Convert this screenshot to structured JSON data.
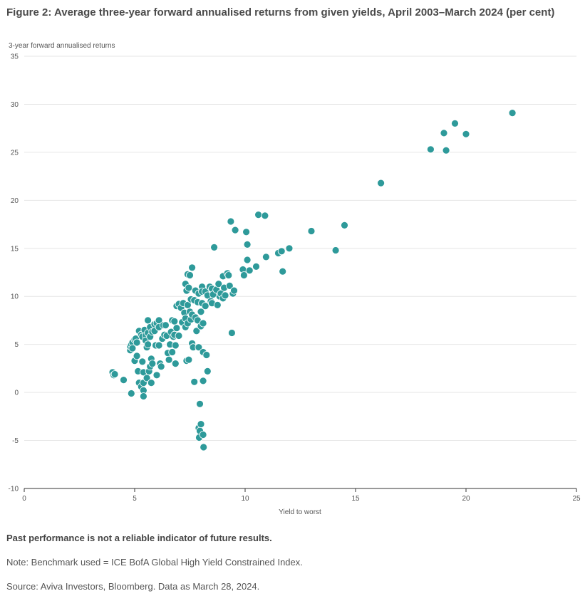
{
  "title": "Figure 2: Average three-year forward annualised returns from given yields, April 2003–March 2024 (per cent)",
  "footnotes": {
    "disclaimer": "Past performance is not a reliable indicator of future results.",
    "note": "Note: Benchmark used = ICE BofA Global High Yield Constrained Index.",
    "source": "Source: Aviva Investors, Bloomberg. Data as March 28, 2024."
  },
  "colors": {
    "point": "#2e9a9a",
    "point_stroke": "#ffffff",
    "grid": "#e6e6e6",
    "axis": "#333333"
  },
  "chart_data": {
    "type": "scatter",
    "title": "Figure 2: Average three-year forward annualised returns from given yields, April 2003–March 2024 (per cent)",
    "xlabel": "Yield to worst",
    "ylabel": "3-year forward annualised returns",
    "xlim": [
      0,
      25
    ],
    "ylim": [
      -10,
      35
    ],
    "xticks": [
      0,
      5,
      10,
      15,
      20,
      25
    ],
    "yticks": [
      -10,
      -5,
      0,
      5,
      10,
      15,
      20,
      25,
      30,
      35
    ],
    "grid": "horizontal",
    "legend": "none",
    "points": [
      [
        4.0,
        2.1
      ],
      [
        4.05,
        1.8
      ],
      [
        4.1,
        1.9
      ],
      [
        4.5,
        1.3
      ],
      [
        4.8,
        4.4
      ],
      [
        4.8,
        4.8
      ],
      [
        4.85,
        5.0
      ],
      [
        4.9,
        5.2
      ],
      [
        4.9,
        4.6
      ],
      [
        4.85,
        -0.1
      ],
      [
        5.0,
        3.3
      ],
      [
        5.0,
        5.5
      ],
      [
        5.05,
        5.6
      ],
      [
        5.1,
        5.2
      ],
      [
        5.1,
        3.8
      ],
      [
        5.15,
        2.2
      ],
      [
        5.2,
        6.4
      ],
      [
        5.2,
        1.0
      ],
      [
        5.3,
        6.0
      ],
      [
        5.3,
        0.6
      ],
      [
        5.35,
        5.8
      ],
      [
        5.35,
        3.2
      ],
      [
        5.4,
        2.1
      ],
      [
        5.4,
        1.0
      ],
      [
        5.4,
        0.2
      ],
      [
        5.4,
        -0.4
      ],
      [
        5.45,
        6.5
      ],
      [
        5.5,
        5.9
      ],
      [
        5.5,
        5.4
      ],
      [
        5.55,
        4.7
      ],
      [
        5.55,
        1.5
      ],
      [
        5.6,
        7.5
      ],
      [
        5.6,
        6.2
      ],
      [
        5.6,
        5.0
      ],
      [
        5.65,
        2.2
      ],
      [
        5.7,
        6.8
      ],
      [
        5.7,
        5.8
      ],
      [
        5.7,
        2.7
      ],
      [
        5.75,
        3.5
      ],
      [
        5.75,
        1.0
      ],
      [
        5.8,
        6.3
      ],
      [
        5.8,
        3.0
      ],
      [
        5.9,
        7.1
      ],
      [
        5.9,
        6.4
      ],
      [
        5.95,
        4.9
      ],
      [
        6.0,
        7.2
      ],
      [
        6.0,
        1.8
      ],
      [
        6.1,
        7.5
      ],
      [
        6.1,
        6.8
      ],
      [
        6.1,
        4.9
      ],
      [
        6.15,
        3.0
      ],
      [
        6.2,
        2.7
      ],
      [
        6.25,
        5.6
      ],
      [
        6.3,
        7.0
      ],
      [
        6.35,
        6.0
      ],
      [
        6.4,
        7.0
      ],
      [
        6.45,
        5.9
      ],
      [
        6.5,
        4.1
      ],
      [
        6.55,
        3.4
      ],
      [
        6.6,
        5.0
      ],
      [
        6.65,
        6.3
      ],
      [
        6.7,
        7.5
      ],
      [
        6.7,
        4.2
      ],
      [
        6.75,
        5.8
      ],
      [
        6.8,
        7.4
      ],
      [
        6.8,
        6.0
      ],
      [
        6.85,
        4.9
      ],
      [
        6.85,
        3.0
      ],
      [
        6.9,
        9.0
      ],
      [
        6.9,
        6.7
      ],
      [
        7.0,
        9.2
      ],
      [
        7.0,
        5.9
      ],
      [
        7.1,
        8.8
      ],
      [
        7.15,
        7.3
      ],
      [
        7.2,
        9.3
      ],
      [
        7.25,
        8.3
      ],
      [
        7.3,
        11.3
      ],
      [
        7.3,
        7.7
      ],
      [
        7.3,
        6.8
      ],
      [
        7.35,
        10.6
      ],
      [
        7.35,
        3.3
      ],
      [
        7.4,
        12.3
      ],
      [
        7.4,
        9.1
      ],
      [
        7.4,
        7.2
      ],
      [
        7.45,
        10.9
      ],
      [
        7.45,
        3.4
      ],
      [
        7.5,
        12.2
      ],
      [
        7.5,
        8.4
      ],
      [
        7.55,
        9.7
      ],
      [
        7.55,
        7.6
      ],
      [
        7.6,
        13.0
      ],
      [
        7.6,
        8.1
      ],
      [
        7.6,
        5.1
      ],
      [
        7.65,
        4.7
      ],
      [
        7.7,
        9.6
      ],
      [
        7.7,
        1.1
      ],
      [
        7.75,
        10.6
      ],
      [
        7.75,
        7.8
      ],
      [
        7.8,
        6.4
      ],
      [
        7.85,
        9.4
      ],
      [
        7.85,
        7.5
      ],
      [
        7.9,
        10.3
      ],
      [
        7.9,
        4.7
      ],
      [
        7.9,
        -3.7
      ],
      [
        7.92,
        -4.7
      ],
      [
        7.95,
        -4.0
      ],
      [
        7.95,
        -1.2
      ],
      [
        8.0,
        8.4
      ],
      [
        8.0,
        6.9
      ],
      [
        8.0,
        -3.3
      ],
      [
        8.05,
        11.0
      ],
      [
        8.05,
        10.5
      ],
      [
        8.05,
        9.3
      ],
      [
        8.1,
        7.2
      ],
      [
        8.1,
        4.2
      ],
      [
        8.1,
        1.2
      ],
      [
        8.1,
        -4.4
      ],
      [
        8.12,
        -5.7
      ],
      [
        8.2,
        10.5
      ],
      [
        8.2,
        9.0
      ],
      [
        8.25,
        3.9
      ],
      [
        8.3,
        10.1
      ],
      [
        8.3,
        2.2
      ],
      [
        8.4,
        11.0
      ],
      [
        8.45,
        9.5
      ],
      [
        8.5,
        10.8
      ],
      [
        8.5,
        9.3
      ],
      [
        8.55,
        10.2
      ],
      [
        8.6,
        15.1
      ],
      [
        8.7,
        10.7
      ],
      [
        8.75,
        9.1
      ],
      [
        8.8,
        11.3
      ],
      [
        8.85,
        10.0
      ],
      [
        8.9,
        10.3
      ],
      [
        9.0,
        12.1
      ],
      [
        9.0,
        9.8
      ],
      [
        9.05,
        10.9
      ],
      [
        9.1,
        10.1
      ],
      [
        9.2,
        12.4
      ],
      [
        9.25,
        12.2
      ],
      [
        9.3,
        11.1
      ],
      [
        9.35,
        17.8
      ],
      [
        9.4,
        6.2
      ],
      [
        9.45,
        10.3
      ],
      [
        9.5,
        10.6
      ],
      [
        9.55,
        16.9
      ],
      [
        9.9,
        12.8
      ],
      [
        9.95,
        12.2
      ],
      [
        10.05,
        16.7
      ],
      [
        10.1,
        15.4
      ],
      [
        10.1,
        13.8
      ],
      [
        10.2,
        12.7
      ],
      [
        10.5,
        13.1
      ],
      [
        10.6,
        18.5
      ],
      [
        10.9,
        18.4
      ],
      [
        10.95,
        14.1
      ],
      [
        11.5,
        14.5
      ],
      [
        11.65,
        14.7
      ],
      [
        11.7,
        12.6
      ],
      [
        12.0,
        15.0
      ],
      [
        13.0,
        16.8
      ],
      [
        14.1,
        14.8
      ],
      [
        14.5,
        17.4
      ],
      [
        16.15,
        21.8
      ],
      [
        18.4,
        25.3
      ],
      [
        19.0,
        27.0
      ],
      [
        19.1,
        25.2
      ],
      [
        19.5,
        28.0
      ],
      [
        20.0,
        26.9
      ],
      [
        22.1,
        29.1
      ]
    ]
  }
}
